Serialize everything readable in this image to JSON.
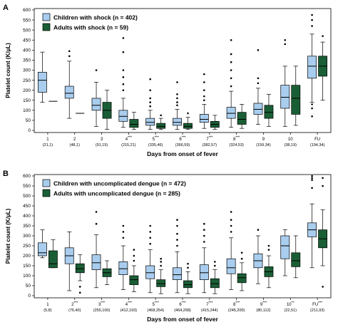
{
  "chart_data": [
    {
      "type": "boxplot",
      "panel_label": "A",
      "xlabel": "Days from onset of fever",
      "ylabel": "Platelet count (K/µL)",
      "ylim": [
        0,
        600
      ],
      "yticks": [
        0,
        50,
        100,
        150,
        200,
        250,
        300,
        350,
        400,
        450,
        500,
        550,
        600
      ],
      "grid": false,
      "legend_position": "top-left",
      "categories": [
        {
          "day": "1",
          "stars": "",
          "n": "(21,1)"
        },
        {
          "day": "2",
          "stars": "",
          "n": "(48,1)"
        },
        {
          "day": "3",
          "stars": "",
          "n": "(91,15)"
        },
        {
          "day": "4",
          "stars": "***",
          "n": "(215,21)"
        },
        {
          "day": "5",
          "stars": "***",
          "n": "(335,46)"
        },
        {
          "day": "6",
          "stars": "***",
          "n": "(366,59)"
        },
        {
          "day": "7",
          "stars": "***",
          "n": "(382,57)"
        },
        {
          "day": "8",
          "stars": "***",
          "n": "(324,53)"
        },
        {
          "day": "9",
          "stars": "",
          "n": "(159,34)"
        },
        {
          "day": "10",
          "stars": "",
          "n": "(38,19)"
        },
        {
          "day": "FU",
          "stars": "",
          "n": "(194,34)"
        }
      ],
      "series": [
        {
          "name": "Children with shock (n = 402)",
          "color": "#a9cdee",
          "boxes": [
            {
              "min": 140,
              "q1": 190,
              "median": 250,
              "q3": 290,
              "max": 390,
              "outliers": []
            },
            {
              "min": 60,
              "q1": 160,
              "median": 185,
              "q3": 220,
              "max": 345,
              "outliers": [
                370,
                395
              ]
            },
            {
              "min": 20,
              "q1": 100,
              "median": 125,
              "q3": 160,
              "max": 240,
              "outliers": [
                300
              ]
            },
            {
              "min": 15,
              "q1": 45,
              "median": 70,
              "q3": 100,
              "max": 160,
              "outliers": [
                200,
                230,
                265,
                300,
                390,
                460
              ]
            },
            {
              "min": 5,
              "q1": 25,
              "median": 40,
              "q3": 60,
              "max": 100,
              "outliers": [
                120,
                140,
                160,
                200,
                255
              ]
            },
            {
              "min": 5,
              "q1": 25,
              "median": 40,
              "q3": 60,
              "max": 105,
              "outliers": [
                125,
                140,
                160,
                180,
                240
              ]
            },
            {
              "min": 10,
              "q1": 40,
              "median": 55,
              "q3": 80,
              "max": 130,
              "outliers": [
                150,
                170,
                200,
                240,
                280
              ]
            },
            {
              "min": 15,
              "q1": 60,
              "median": 85,
              "q3": 115,
              "max": 195,
              "outliers": [
                220,
                260,
                300,
                340,
                380,
                450
              ]
            },
            {
              "min": 30,
              "q1": 80,
              "median": 105,
              "q3": 135,
              "max": 210,
              "outliers": [
                235,
                260,
                400
              ]
            },
            {
              "min": 20,
              "q1": 110,
              "median": 165,
              "q3": 225,
              "max": 320,
              "outliers": [
                430,
                450
              ]
            },
            {
              "min": 140,
              "q1": 260,
              "median": 320,
              "q3": 370,
              "max": 480,
              "outliers": [
                70,
                110,
                130,
                520,
                550,
                575
              ]
            }
          ]
        },
        {
          "name": "Adults with shock (n = 59)",
          "color": "#1a5e35",
          "boxes": [
            {
              "median": 145
            },
            {
              "median": 85
            },
            {
              "min": 5,
              "q1": 60,
              "median": 100,
              "q3": 140,
              "max": 200,
              "outliers": []
            },
            {
              "min": 5,
              "q1": 15,
              "median": 30,
              "q3": 55,
              "max": 90,
              "outliers": []
            },
            {
              "min": 5,
              "q1": 10,
              "median": 20,
              "q3": 35,
              "max": 60,
              "outliers": [
                75
              ]
            },
            {
              "min": 5,
              "q1": 10,
              "median": 20,
              "q3": 35,
              "max": 65,
              "outliers": [
                85
              ]
            },
            {
              "min": 5,
              "q1": 15,
              "median": 30,
              "q3": 45,
              "max": 75,
              "outliers": []
            },
            {
              "min": 10,
              "q1": 30,
              "median": 55,
              "q3": 90,
              "max": 130,
              "outliers": []
            },
            {
              "min": 20,
              "q1": 60,
              "median": 90,
              "q3": 125,
              "max": 180,
              "outliers": []
            },
            {
              "min": 25,
              "q1": 80,
              "median": 160,
              "q3": 225,
              "max": 320,
              "outliers": []
            },
            {
              "min": 150,
              "q1": 270,
              "median": 320,
              "q3": 370,
              "max": 440,
              "outliers": [
                470
              ]
            }
          ]
        }
      ]
    },
    {
      "type": "boxplot",
      "panel_label": "B",
      "xlabel": "Days from onset of fever",
      "ylabel": "Platelet count (K/µL)",
      "ylim": [
        0,
        600
      ],
      "yticks": [
        0,
        50,
        100,
        150,
        200,
        250,
        300,
        350,
        400,
        450,
        500,
        550,
        600
      ],
      "grid": false,
      "legend_position": "top-left",
      "categories": [
        {
          "day": "1",
          "stars": "",
          "n": "(5,8)"
        },
        {
          "day": "2",
          "stars": "***",
          "n": "(76,40)"
        },
        {
          "day": "3",
          "stars": "***",
          "n": "(255,100)"
        },
        {
          "day": "4",
          "stars": "***",
          "n": "(412,193)"
        },
        {
          "day": "5",
          "stars": "***",
          "n": "(468,254)"
        },
        {
          "day": "6",
          "stars": "***",
          "n": "(464,268)"
        },
        {
          "day": "7",
          "stars": "***",
          "n": "(415,244)"
        },
        {
          "day": "8",
          "stars": "***",
          "n": "(245,200)"
        },
        {
          "day": "9",
          "stars": "***",
          "n": "(80,112)"
        },
        {
          "day": "10",
          "stars": "**",
          "n": "(22,51)"
        },
        {
          "day": "FU",
          "stars": "***",
          "n": "(211,93)"
        }
      ],
      "series": [
        {
          "name": "Children with uncomplicated dengue (n = 472)",
          "color": "#a9cdee",
          "boxes": [
            {
              "min": 190,
              "q1": 200,
              "median": 215,
              "q3": 265,
              "max": 330,
              "outliers": []
            },
            {
              "min": 25,
              "q1": 160,
              "median": 200,
              "q3": 240,
              "max": 320,
              "outliers": []
            },
            {
              "min": 40,
              "q1": 130,
              "median": 165,
              "q3": 205,
              "max": 305,
              "outliers": [
                360,
                420
              ]
            },
            {
              "min": 30,
              "q1": 105,
              "median": 135,
              "q3": 170,
              "max": 250,
              "outliers": [
                290,
                320,
                350
              ]
            },
            {
              "min": 15,
              "q1": 85,
              "median": 115,
              "q3": 150,
              "max": 230,
              "outliers": [
                260,
                290,
                320,
                350
              ]
            },
            {
              "min": 15,
              "q1": 80,
              "median": 105,
              "q3": 140,
              "max": 220,
              "outliers": [
                250,
                280,
                310,
                350,
                380
              ]
            },
            {
              "min": 15,
              "q1": 80,
              "median": 115,
              "q3": 155,
              "max": 240,
              "outliers": [
                270,
                300,
                330,
                360
              ]
            },
            {
              "min": 30,
              "q1": 110,
              "median": 140,
              "q3": 185,
              "max": 290,
              "outliers": [
                320,
                350,
                380,
                420
              ]
            },
            {
              "min": 60,
              "q1": 140,
              "median": 175,
              "q3": 210,
              "max": 300,
              "outliers": [
                330
              ]
            },
            {
              "min": 100,
              "q1": 185,
              "median": 250,
              "q3": 300,
              "max": 330,
              "outliers": []
            },
            {
              "min": 140,
              "q1": 295,
              "median": 330,
              "q3": 365,
              "max": 460,
              "outliers": [
                540,
                580,
                590,
                600
              ]
            }
          ]
        },
        {
          "name": "Adults with uncomplicated dengue (n = 285)",
          "color": "#1a5e35",
          "boxes": [
            {
              "min": 140,
              "q1": 140,
              "median": 160,
              "q3": 225,
              "max": 280,
              "outliers": []
            },
            {
              "min": 75,
              "q1": 115,
              "median": 135,
              "q3": 160,
              "max": 205,
              "outliers": [
                15,
                45
              ]
            },
            {
              "min": 55,
              "q1": 95,
              "median": 115,
              "q3": 135,
              "max": 175,
              "outliers": []
            },
            {
              "min": 20,
              "q1": 55,
              "median": 80,
              "q3": 100,
              "max": 150,
              "outliers": [
                175,
                200,
                230
              ]
            },
            {
              "min": 10,
              "q1": 45,
              "median": 60,
              "q3": 80,
              "max": 130,
              "outliers": [
                150,
                170,
                185
              ]
            },
            {
              "min": 10,
              "q1": 40,
              "median": 55,
              "q3": 75,
              "max": 120,
              "outliers": [
                140,
                160
              ]
            },
            {
              "min": 10,
              "q1": 40,
              "median": 60,
              "q3": 85,
              "max": 130,
              "outliers": [
                150,
                170
              ]
            },
            {
              "min": 25,
              "q1": 65,
              "median": 90,
              "q3": 110,
              "max": 165,
              "outliers": [
                185,
                215
              ]
            },
            {
              "min": 40,
              "q1": 95,
              "median": 120,
              "q3": 145,
              "max": 200,
              "outliers": [
                230,
                250
              ]
            },
            {
              "min": 90,
              "q1": 145,
              "median": 175,
              "q3": 215,
              "max": 300,
              "outliers": []
            },
            {
              "min": 150,
              "q1": 240,
              "median": 285,
              "q3": 330,
              "max": 430,
              "outliers": [
                45,
                550,
                590
              ]
            }
          ]
        }
      ]
    }
  ]
}
